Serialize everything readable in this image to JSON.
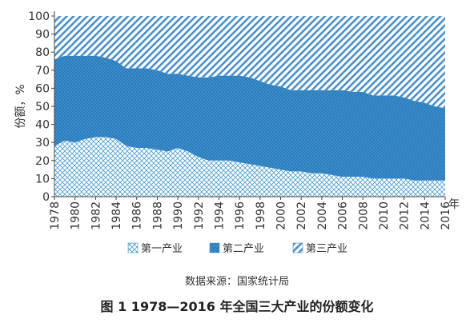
{
  "chart_data": {
    "type": "area",
    "stacked": true,
    "x": [
      1978,
      1979,
      1980,
      1981,
      1982,
      1983,
      1984,
      1985,
      1986,
      1987,
      1988,
      1989,
      1990,
      1991,
      1992,
      1993,
      1994,
      1995,
      1996,
      1997,
      1998,
      1999,
      2000,
      2001,
      2002,
      2003,
      2004,
      2005,
      2006,
      2007,
      2008,
      2009,
      2010,
      2011,
      2012,
      2013,
      2014,
      2015,
      2016
    ],
    "x_tick_labels": [
      "1978",
      "1980",
      "1982",
      "1984",
      "1986",
      "1988",
      "1990",
      "1992",
      "1994",
      "1996",
      "1998",
      "2000",
      "2002",
      "2004",
      "2006",
      "2008",
      "2010",
      "2012",
      "2014",
      "2016"
    ],
    "x_unit_label": "年",
    "ylabel": "份额，%",
    "ylim": [
      0,
      100
    ],
    "y_ticks": [
      0,
      10,
      20,
      30,
      40,
      50,
      60,
      70,
      80,
      90,
      100
    ],
    "series": [
      {
        "name": "第一产业",
        "pattern": "crosshatch",
        "values": [
          28,
          31,
          30,
          32,
          33,
          33,
          32,
          28,
          27,
          27,
          26,
          25,
          27,
          25,
          22,
          20,
          20,
          20,
          19,
          18,
          17,
          16,
          15,
          14,
          14,
          13,
          13,
          12,
          11,
          11,
          11,
          10,
          10,
          10,
          10,
          9,
          9,
          9,
          9
        ]
      },
      {
        "name": "第二产业",
        "pattern": "dots",
        "values": [
          48,
          47,
          48,
          46,
          45,
          44,
          43,
          43,
          44,
          44,
          44,
          43,
          41,
          42,
          44,
          46,
          47,
          47,
          48,
          48,
          47,
          46,
          46,
          45,
          45,
          46,
          46,
          47,
          48,
          47,
          47,
          46,
          46,
          46,
          45,
          44,
          43,
          41,
          40
        ]
      },
      {
        "name": "第三产业",
        "pattern": "diagonal",
        "values": [
          24,
          22,
          22,
          22,
          22,
          23,
          25,
          29,
          29,
          29,
          30,
          32,
          32,
          33,
          34,
          34,
          33,
          33,
          33,
          34,
          36,
          38,
          39,
          41,
          41,
          41,
          41,
          41,
          41,
          42,
          42,
          44,
          44,
          44,
          45,
          47,
          48,
          50,
          51
        ]
      }
    ],
    "colors": {
      "primary": "#4a9ed0",
      "secondary": "#2f7fbf",
      "tertiary": "#4a90c8"
    },
    "grid": false,
    "legend_position": "bottom"
  },
  "source_note": "数据来源：国家统计局",
  "caption": "图 1  1978—2016 年全国三大产业的份额变化"
}
